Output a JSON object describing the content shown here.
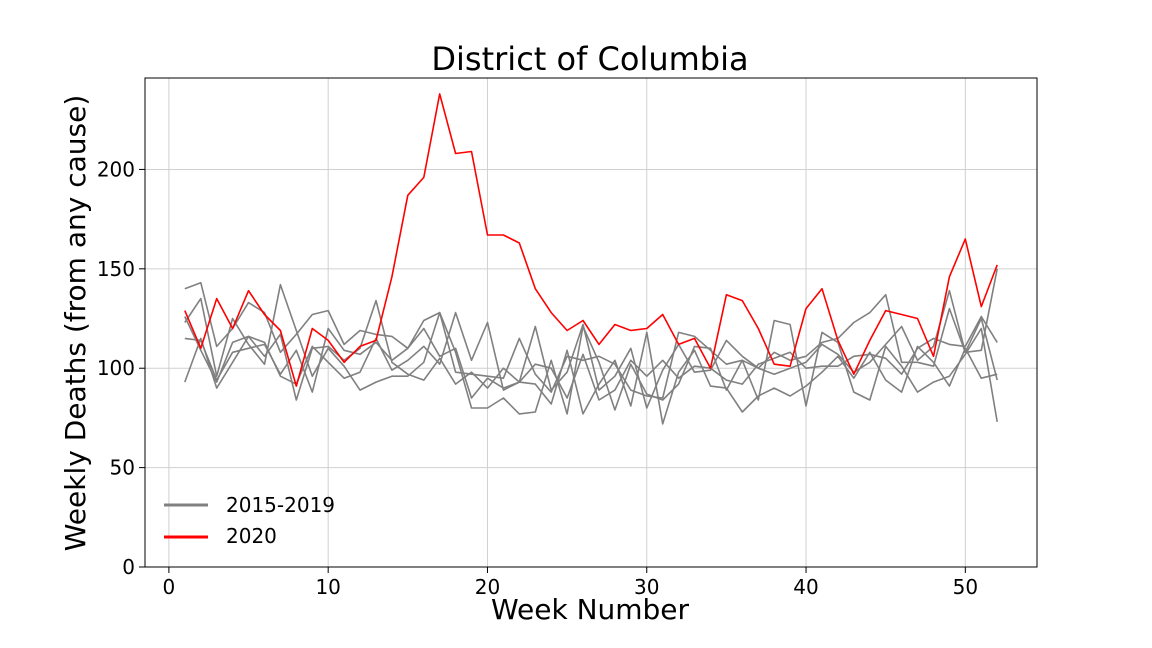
{
  "chart_data": {
    "type": "line",
    "title": "District of Columbia",
    "xlabel": "Week Number",
    "ylabel": "Weekly Deaths (from any cause)",
    "xlim": [
      -1.5,
      54.5
    ],
    "ylim": [
      0,
      246
    ],
    "xticks": [
      0,
      10,
      20,
      30,
      40,
      50
    ],
    "yticks": [
      0,
      50,
      100,
      150,
      200
    ],
    "grid": true,
    "legend_position": "bottom-left",
    "legend": [
      {
        "label": "2015-2019",
        "color": "#808080"
      },
      {
        "label": "2020",
        "color": "#ff0000"
      }
    ],
    "x": [
      1,
      2,
      3,
      4,
      5,
      6,
      7,
      8,
      9,
      10,
      11,
      12,
      13,
      14,
      15,
      16,
      17,
      18,
      19,
      20,
      21,
      22,
      23,
      24,
      25,
      26,
      27,
      28,
      29,
      30,
      31,
      32,
      33,
      34,
      35,
      36,
      37,
      38,
      39,
      40,
      41,
      42,
      43,
      44,
      45,
      46,
      47,
      48,
      49,
      50,
      51,
      52
    ],
    "series": [
      {
        "name": "2015-2019",
        "color": "#808080",
        "values": [
          140,
          143,
          111,
          120,
          133,
          128,
          108,
          117,
          127,
          129,
          112,
          119,
          117,
          116,
          110,
          124,
          128,
          98,
          97,
          96,
          95,
          115,
          97,
          88,
          106,
          104,
          106,
          102,
          89,
          86,
          85,
          118,
          116,
          109,
          102,
          104,
          100,
          108,
          104,
          106,
          113,
          115,
          123,
          128,
          137,
          103,
          103,
          101,
          130,
          108,
          109,
          150
        ]
      },
      {
        "name": "2015-2019",
        "color": "#808080",
        "values": [
          123,
          135,
          96,
          125,
          112,
          102,
          142,
          119,
          96,
          110,
          101,
          89,
          93,
          96,
          96,
          103,
          128,
          108,
          80,
          80,
          85,
          77,
          78,
          104,
          77,
          121,
          103,
          79,
          102,
          87,
          84,
          92,
          111,
          110,
          89,
          104,
          84,
          124,
          122,
          81,
          118,
          113,
          88,
          84,
          111,
          101,
          88,
          93,
          96,
          107,
          120,
          73
        ]
      },
      {
        "name": "2015-2019",
        "color": "#808080",
        "values": [
          93,
          115,
          90,
          103,
          116,
          106,
          117,
          84,
          110,
          111,
          104,
          110,
          134,
          103,
          97,
          94,
          105,
          92,
          98,
          90,
          100,
          93,
          121,
          89,
          98,
          122,
          89,
          96,
          110,
          80,
          99,
          112,
          98,
          99,
          114,
          106,
          100,
          97,
          100,
          103,
          112,
          107,
          98,
          103,
          112,
          121,
          104,
          111,
          139,
          108,
          125,
          94
        ]
      },
      {
        "name": "2015-2019",
        "color": "#808080",
        "values": [
          115,
          114,
          94,
          108,
          110,
          112,
          97,
          109,
          88,
          120,
          109,
          107,
          113,
          104,
          110,
          120,
          106,
          110,
          85,
          95,
          90,
          93,
          92,
          82,
          109,
          77,
          92,
          104,
          81,
          118,
          72,
          98,
          109,
          91,
          90,
          78,
          86,
          90,
          86,
          91,
          98,
          106,
          95,
          108,
          94,
          88,
          111,
          103,
          91,
          110,
          95,
          97
        ]
      },
      {
        "name": "2015-2019",
        "color": "#808080",
        "values": [
          126,
          109,
          93,
          113,
          116,
          113,
          96,
          92,
          111,
          103,
          95,
          98,
          115,
          99,
          104,
          111,
          102,
          128,
          104,
          123,
          89,
          93,
          102,
          100,
          85,
          107,
          84,
          89,
          104,
          96,
          104,
          95,
          101,
          100,
          94,
          92,
          102,
          105,
          108,
          100,
          101,
          101,
          106,
          107,
          105,
          97,
          110,
          115,
          112,
          111,
          126,
          113
        ]
      },
      {
        "name": "2020",
        "color": "#ff0000",
        "values": [
          129,
          110,
          135,
          120,
          139,
          127,
          119,
          91,
          120,
          114,
          103,
          111,
          114,
          146,
          187,
          196,
          238,
          208,
          209,
          167,
          167,
          163,
          140,
          128,
          119,
          124,
          112,
          122,
          119,
          120,
          127,
          112,
          115,
          100,
          137,
          134,
          120,
          102,
          101,
          130,
          140,
          114,
          97,
          114,
          129,
          127,
          125,
          106,
          146,
          165,
          131,
          152
        ]
      }
    ]
  }
}
